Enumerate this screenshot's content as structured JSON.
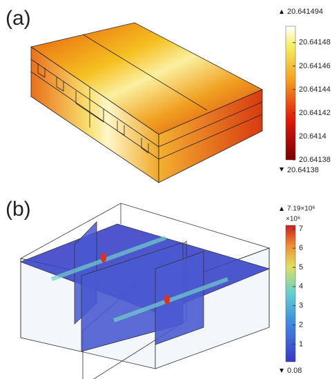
{
  "panels": [
    {
      "label": "(a)",
      "max_label": "20.641494",
      "min_label": "20.64138",
      "colorbar": {
        "lim": [
          20.64138,
          20.641494
        ],
        "ticks": [
          20.64148,
          20.64146,
          20.64144,
          20.64142,
          20.6414,
          20.64138
        ]
      }
    },
    {
      "label": "(b)",
      "max_label": "7.19×10⁶",
      "min_label": "0.08",
      "multiplier": "×10⁶",
      "colorbar": {
        "lim": [
          0.08,
          7.19
        ],
        "ticks": [
          7,
          6,
          5,
          4,
          3,
          2,
          1
        ]
      }
    }
  ]
}
